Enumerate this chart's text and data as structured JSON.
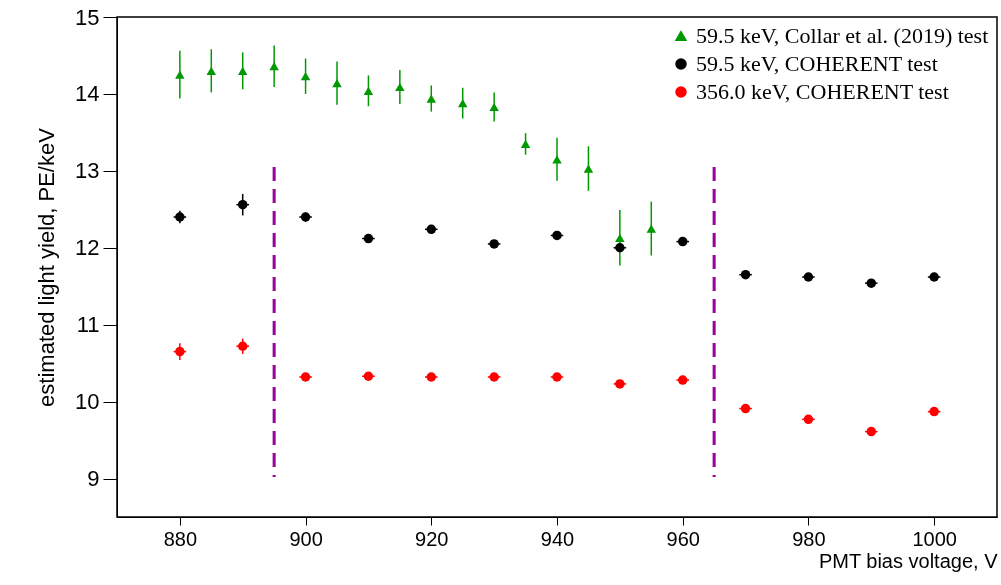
{
  "chart_data": {
    "type": "scatter",
    "xlabel": "PMT bias voltage, V",
    "ylabel": "estimated light yield, PE/keV",
    "xlim": [
      870,
      1010
    ],
    "xticks": [
      880,
      900,
      920,
      940,
      960,
      980,
      1000
    ],
    "ylim": [
      8.5,
      15
    ],
    "yticks": [
      9,
      10,
      11,
      12,
      13,
      14,
      15
    ],
    "grid": false,
    "legend": "top right",
    "series": [
      {
        "name": "59.5 keV, Collar et al. (2019) test",
        "color": "#009900",
        "marker": "triangle",
        "x": [
          880,
          885,
          890,
          895,
          900,
          905,
          910,
          915,
          920,
          925,
          930,
          935,
          940,
          945,
          950,
          955
        ],
        "values": [
          14.25,
          14.3,
          14.3,
          14.36,
          14.23,
          14.14,
          14.04,
          14.09,
          13.94,
          13.88,
          13.83,
          13.35,
          13.15,
          13.03,
          12.13,
          12.25
        ],
        "errors": [
          0.31,
          0.28,
          0.24,
          0.27,
          0.23,
          0.28,
          0.2,
          0.22,
          0.17,
          0.2,
          0.19,
          0.14,
          0.28,
          0.29,
          0.36,
          0.35
        ]
      },
      {
        "name": "59.5 keV, COHERENT test",
        "color": "#000000",
        "marker": "circle",
        "x": [
          880,
          890,
          900,
          910,
          920,
          930,
          940,
          950,
          960,
          970,
          980,
          990,
          1000
        ],
        "values": [
          12.4,
          12.56,
          12.4,
          12.12,
          12.24,
          12.05,
          12.16,
          12.0,
          12.08,
          11.65,
          11.62,
          11.54,
          11.62
        ],
        "errors": [
          0.08,
          0.14,
          0.06,
          0.04,
          0.04,
          0.04,
          0.04,
          0.05,
          0.03,
          0.05,
          0.03,
          0.04,
          0.03
        ],
        "xerrors": [
          1,
          1,
          1,
          1,
          1,
          1,
          1,
          1,
          1,
          1,
          1,
          1,
          1
        ]
      },
      {
        "name": "356.0 keV, COHERENT test",
        "color": "#ff0000",
        "marker": "circle",
        "x": [
          880,
          890,
          900,
          910,
          920,
          930,
          940,
          950,
          960,
          970,
          980,
          990,
          1000
        ],
        "values": [
          10.65,
          10.72,
          10.32,
          10.33,
          10.32,
          10.32,
          10.32,
          10.23,
          10.28,
          9.91,
          9.77,
          9.61,
          9.87
        ],
        "errors": [
          0.11,
          0.1,
          0.04,
          0.04,
          0.03,
          0.03,
          0.03,
          0.04,
          0.03,
          0.04,
          0.04,
          0.03,
          0.03
        ],
        "xerrors": [
          1,
          1,
          1,
          1,
          1,
          1,
          1,
          1,
          1,
          1,
          1,
          1,
          1
        ]
      }
    ],
    "ref_lines": [
      {
        "axis": "x",
        "value": 895,
        "color": "#990099",
        "line_style": "dashed"
      },
      {
        "axis": "x",
        "value": 965,
        "color": "#990099",
        "line_style": "dashed"
      }
    ]
  }
}
